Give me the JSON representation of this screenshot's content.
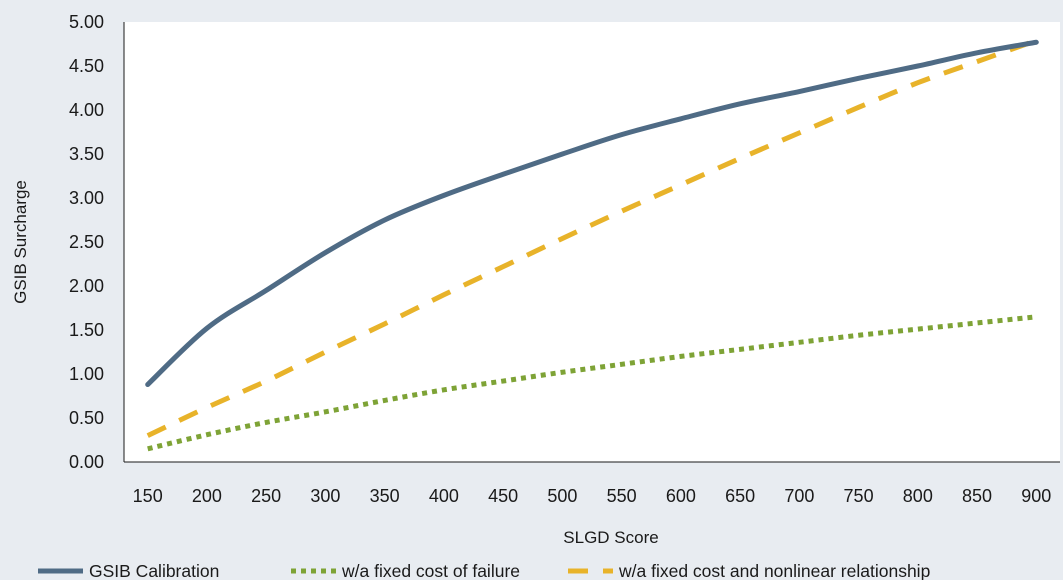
{
  "chart_data": {
    "type": "line",
    "title": "",
    "xlabel": "SLGD Score",
    "ylabel": "GSIB Surcharge",
    "xlim": [
      130,
      920
    ],
    "ylim": [
      0,
      5
    ],
    "x_ticks": [
      150,
      200,
      250,
      300,
      350,
      400,
      450,
      500,
      550,
      600,
      650,
      700,
      750,
      800,
      850,
      900
    ],
    "x_tick_labels": [
      "150",
      "200",
      "250",
      "300",
      "350",
      "400",
      "450",
      "500",
      "550",
      "600",
      "650",
      "700",
      "750",
      "800",
      "850",
      "900"
    ],
    "y_ticks": [
      0,
      0.5,
      1,
      1.5,
      2,
      2.5,
      3,
      3.5,
      4,
      4.5,
      5
    ],
    "y_tick_labels": [
      "0.00",
      "0.50",
      "1.00",
      "1.50",
      "2.00",
      "2.50",
      "3.00",
      "3.50",
      "4.00",
      "4.50",
      "5.00"
    ],
    "grid": false,
    "legend_position": "bottom",
    "x": [
      150,
      200,
      250,
      300,
      350,
      400,
      450,
      500,
      550,
      600,
      650,
      700,
      750,
      800,
      850,
      900
    ],
    "series": [
      {
        "name": "GSIB Calibration",
        "style": "solid",
        "color": "#4f6b85",
        "values": [
          0.88,
          1.52,
          1.95,
          2.38,
          2.75,
          3.03,
          3.27,
          3.5,
          3.72,
          3.9,
          4.07,
          4.21,
          4.36,
          4.5,
          4.65,
          4.77
        ]
      },
      {
        "name": "w/a fixed cost of failure",
        "style": "dotted",
        "color": "#7ea336",
        "values": [
          0.15,
          0.31,
          0.45,
          0.57,
          0.7,
          0.82,
          0.92,
          1.02,
          1.11,
          1.2,
          1.28,
          1.36,
          1.44,
          1.51,
          1.58,
          1.65
        ]
      },
      {
        "name": "w/a fixed cost and nonlinear relationship",
        "style": "dashed",
        "color": "#e8b32a",
        "values": [
          0.3,
          0.62,
          0.92,
          1.25,
          1.57,
          1.9,
          2.22,
          2.54,
          2.85,
          3.15,
          3.45,
          3.74,
          4.03,
          4.31,
          4.55,
          4.79
        ]
      }
    ]
  }
}
